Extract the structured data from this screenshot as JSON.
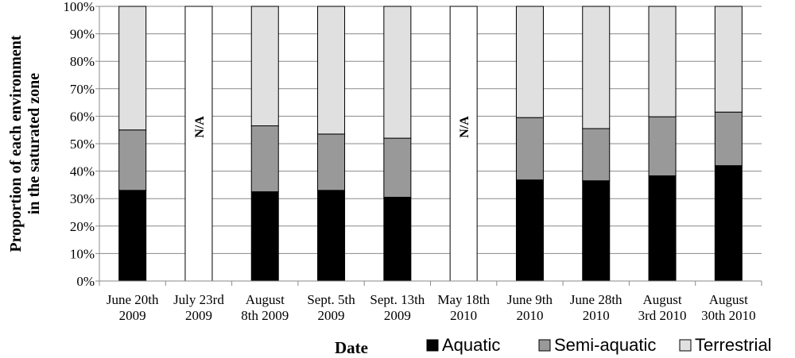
{
  "chart_data": {
    "type": "bar",
    "stacked": true,
    "xlabel": "Date",
    "ylabel_lines": [
      "Proportion of each environment",
      "in the saturated zone"
    ],
    "ylim": [
      0,
      100
    ],
    "yticks": [
      "0%",
      "10%",
      "20%",
      "30%",
      "40%",
      "50%",
      "60%",
      "70%",
      "80%",
      "90%",
      "100%"
    ],
    "grid": true,
    "legend_position": "bottom",
    "categories": [
      [
        "June 20th",
        "2009"
      ],
      [
        "July 23rd",
        "2009"
      ],
      [
        "August",
        "8th 2009"
      ],
      [
        "Sept. 5th",
        "2009"
      ],
      [
        "Sept. 13th",
        "2009"
      ],
      [
        "May 18th",
        "2010"
      ],
      [
        "June 9th",
        "2010"
      ],
      [
        "June 28th",
        "2010"
      ],
      [
        "August",
        "3rd 2010"
      ],
      [
        "August",
        "30th 2010"
      ]
    ],
    "na_label": "N/A",
    "na_indices": [
      1,
      5
    ],
    "series": [
      {
        "name": "Aquatic",
        "color": "#000000",
        "values": [
          33,
          null,
          32.5,
          33,
          30.5,
          null,
          36.8,
          36.5,
          38.3,
          42
        ]
      },
      {
        "name": "Semi-aquatic",
        "color": "#999999",
        "values": [
          22,
          null,
          24,
          20.5,
          21.5,
          null,
          22.7,
          19,
          21.5,
          19.5
        ]
      },
      {
        "name": "Terrestrial",
        "color": "#e0e0e0",
        "values": [
          45,
          null,
          43.5,
          46.5,
          48,
          null,
          40.5,
          44.5,
          40.2,
          38.5
        ]
      }
    ]
  }
}
